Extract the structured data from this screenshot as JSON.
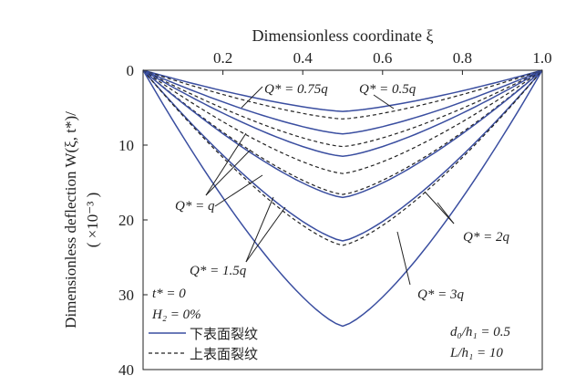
{
  "chart_data": {
    "type": "line",
    "title": "",
    "xlabel": "Dimensionless coordinate ξ",
    "ylabel": "Dimensionless deflection W(ξ, t*)/",
    "ylabel2": "( ×10⁻³ )",
    "xlim": [
      0,
      1
    ],
    "ylim": [
      0,
      40
    ],
    "y_inverted": true,
    "x_axis_position": "top",
    "x_ticks": [
      0.2,
      0.4,
      0.6,
      0.8,
      1.0
    ],
    "x_tick_labels": [
      "0.2",
      "0.4",
      "0.6",
      "0.8",
      "1.0"
    ],
    "y_ticks": [
      0,
      10,
      20,
      30,
      40
    ],
    "y_tick_labels": [
      "0",
      "10",
      "20",
      "30",
      "40"
    ],
    "grid": false,
    "legend_position": "bottom-left",
    "legend": [
      {
        "label": "下表面裂纹",
        "style": "solid"
      },
      {
        "label": "上表面裂纹",
        "style": "dashed"
      }
    ],
    "colors": {
      "solid": "#3a4ea0",
      "dashed": "#222222",
      "axis": "#222222"
    },
    "series": [
      {
        "load": "0.5q",
        "style": "solid",
        "peak_x": 0.5,
        "peak": 5.5
      },
      {
        "load": "0.5q",
        "style": "dashed",
        "peak_x": 0.5,
        "peak": 6.5
      },
      {
        "load": "0.75q",
        "style": "solid",
        "peak_x": 0.5,
        "peak": 8.5
      },
      {
        "load": "0.75q",
        "style": "dashed",
        "peak_x": 0.5,
        "peak": 10.2
      },
      {
        "load": "q",
        "style": "solid",
        "peak_x": 0.5,
        "peak": 11.5
      },
      {
        "load": "q",
        "style": "dashed",
        "peak_x": 0.5,
        "peak": 13.8
      },
      {
        "load": "1.5q",
        "style": "dashed",
        "peak_x": 0.5,
        "peak": 16.6
      },
      {
        "load": "1.5q",
        "style": "solid",
        "peak_x": 0.5,
        "peak": 17.0
      },
      {
        "load": "2q",
        "style": "solid",
        "peak_x": 0.5,
        "peak": 22.8
      },
      {
        "load": "2q",
        "style": "dashed",
        "peak_x": 0.5,
        "peak": 23.4
      },
      {
        "load": "3q",
        "style": "solid",
        "peak_x": 0.5,
        "peak": 34.2
      }
    ],
    "annotations": {
      "q075": "Q* = 0.75q",
      "q05": "Q* = 0.5q",
      "q1": "Q* = q",
      "q15": "Q* = 1.5q",
      "q2": "Q* = 2q",
      "q3": "Q* = 3q",
      "t0": "t* = 0",
      "h2": "H₂ = 0%",
      "d0": "d₀/h₁ = 0.5",
      "L": "L/h₁ = 10"
    }
  }
}
